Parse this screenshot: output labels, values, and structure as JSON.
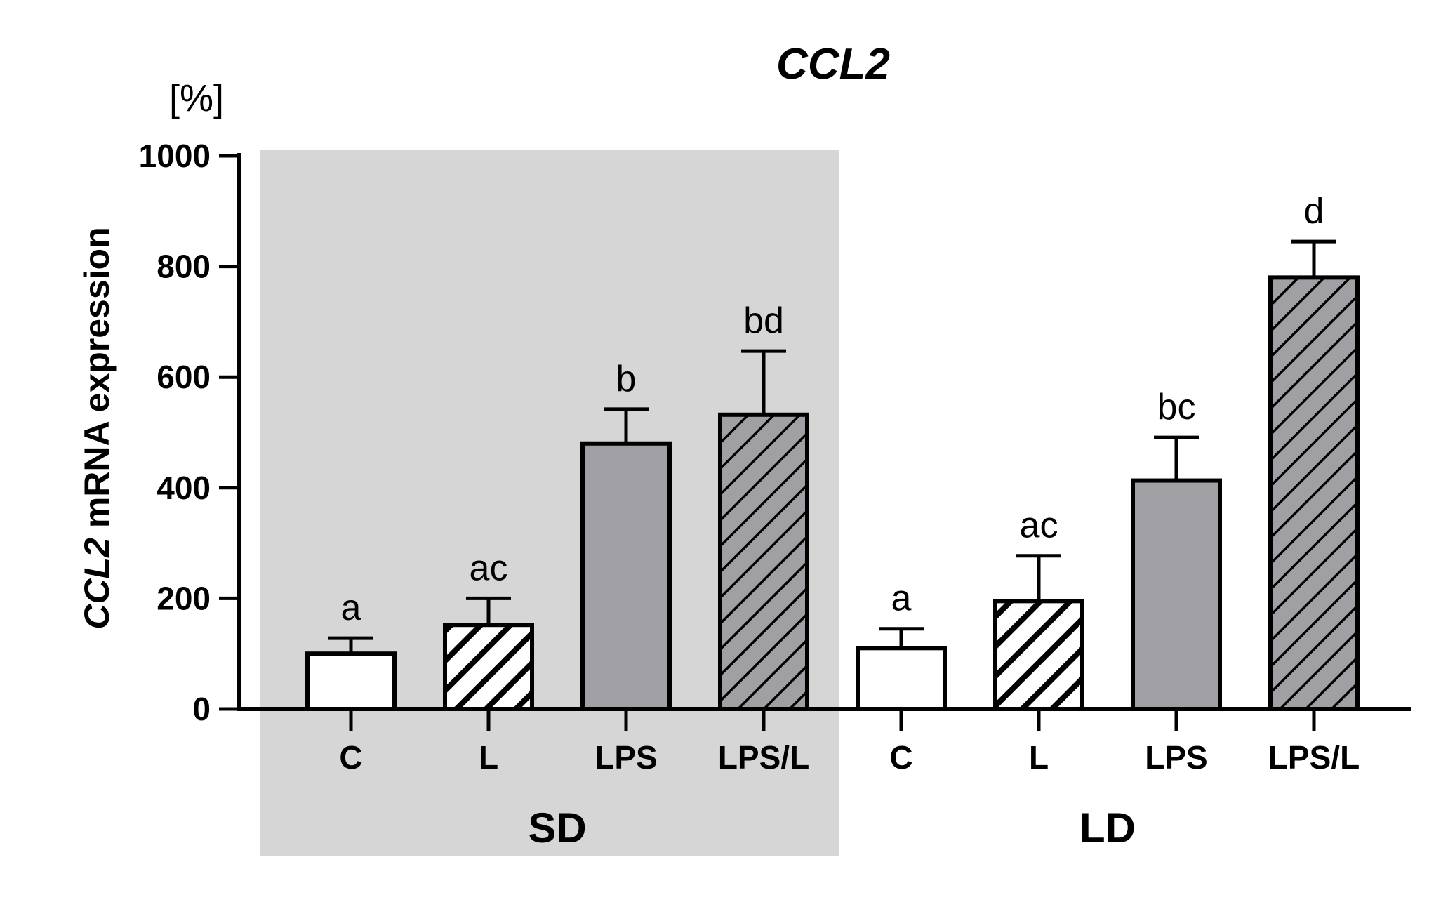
{
  "chart_data": {
    "type": "bar",
    "title": "CCL2",
    "ylabel_italic": "CCL2",
    "ylabel_rest": " mRNA expression",
    "yunit": "[%]",
    "ylim": [
      0,
      1000
    ],
    "yticks": [
      0,
      200,
      400,
      600,
      800,
      1000
    ],
    "grid": false,
    "groups": [
      {
        "name": "SD",
        "shaded": true
      },
      {
        "name": "LD",
        "shaded": false
      }
    ],
    "bars": [
      {
        "group": "SD",
        "category": "C",
        "value": 100,
        "error": 28,
        "letter": "a",
        "fill": "white",
        "hatch": false
      },
      {
        "group": "SD",
        "category": "L",
        "value": 152,
        "error": 48,
        "letter": "ac",
        "fill": "white",
        "hatch": true
      },
      {
        "group": "SD",
        "category": "LPS",
        "value": 480,
        "error": 62,
        "letter": "b",
        "fill": "gray",
        "hatch": false
      },
      {
        "group": "SD",
        "category": "LPS/L",
        "value": 532,
        "error": 115,
        "letter": "bd",
        "fill": "gray",
        "hatch": true
      },
      {
        "group": "LD",
        "category": "C",
        "value": 110,
        "error": 35,
        "letter": "a",
        "fill": "white",
        "hatch": false
      },
      {
        "group": "LD",
        "category": "L",
        "value": 195,
        "error": 82,
        "letter": "ac",
        "fill": "white",
        "hatch": true
      },
      {
        "group": "LD",
        "category": "LPS",
        "value": 413,
        "error": 78,
        "letter": "bc",
        "fill": "gray",
        "hatch": false
      },
      {
        "group": "LD",
        "category": "LPS/L",
        "value": 780,
        "error": 65,
        "letter": "d",
        "fill": "gray",
        "hatch": true
      }
    ],
    "colors": {
      "gray_bar": "#a0a0a4",
      "shade": "#d6d6d6",
      "axis": "#000000"
    }
  }
}
